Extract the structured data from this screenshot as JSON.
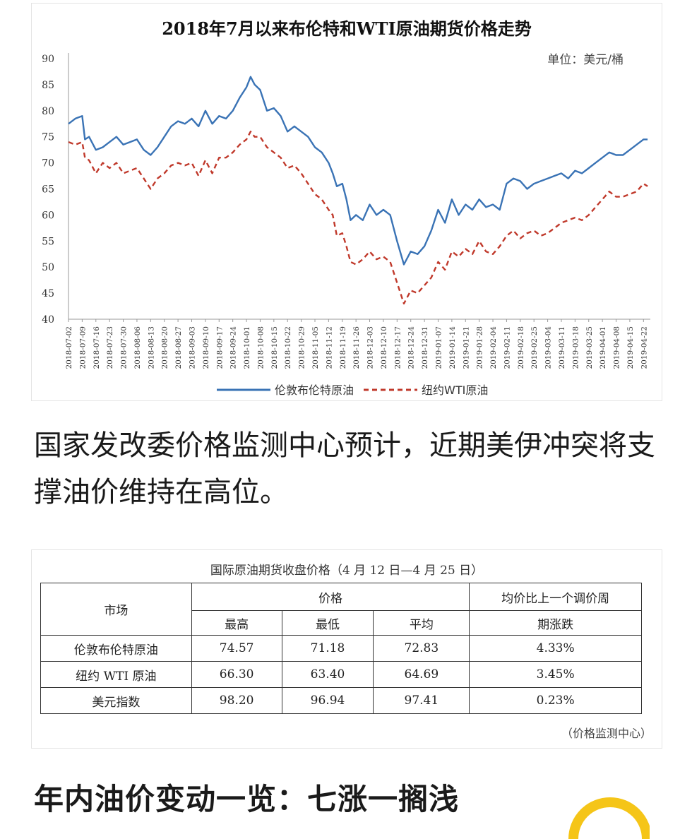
{
  "chart_data": {
    "type": "line",
    "title": "2018年7月以来布伦特和WTI原油期货价格走势",
    "unit_label": "单位：美元/桶",
    "ylim": [
      40,
      90
    ],
    "yticks": [
      40,
      45,
      50,
      55,
      60,
      65,
      70,
      75,
      80,
      85,
      90
    ],
    "x_ticks": [
      "2018-07-02",
      "2018-07-09",
      "2018-07-16",
      "2018-07-23",
      "2018-07-30",
      "2018-08-06",
      "2018-08-13",
      "2018-08-20",
      "2018-08-27",
      "2018-09-03",
      "2018-09-10",
      "2018-09-17",
      "2018-09-24",
      "2018-10-01",
      "2018-10-08",
      "2018-10-15",
      "2018-10-22",
      "2018-10-29",
      "2018-11-05",
      "2018-11-12",
      "2018-11-19",
      "2018-11-26",
      "2018-12-03",
      "2018-12-10",
      "2018-12-17",
      "2018-12-24",
      "2018-12-31",
      "2019-01-07",
      "2019-01-14",
      "2019-01-21",
      "2019-01-28",
      "2019-02-04",
      "2019-02-11",
      "2019-02-18",
      "2019-02-25",
      "2019-03-04",
      "2019-03-11",
      "2019-03-18",
      "2019-03-25",
      "2019-04-01",
      "2019-04-08",
      "2019-04-15",
      "2019-04-22"
    ],
    "x_index_range": [
      0,
      42.5
    ],
    "series": [
      {
        "name": "伦敦布伦特原油",
        "color": "#3a73b5",
        "dash": "solid",
        "x": [
          0,
          0.5,
          1,
          1.2,
          1.5,
          2,
          2.5,
          3,
          3.5,
          4,
          4.5,
          5,
          5.5,
          6,
          6.5,
          7,
          7.5,
          8,
          8.5,
          9,
          9.5,
          10,
          10.5,
          11,
          11.5,
          12,
          12.5,
          13,
          13.3,
          13.6,
          14,
          14.5,
          15,
          15.5,
          16,
          16.5,
          17,
          17.5,
          18,
          18.5,
          19,
          19.3,
          19.6,
          20,
          20.3,
          20.6,
          21,
          21.5,
          22,
          22.5,
          23,
          23.5,
          24,
          24.5,
          25,
          25.5,
          26,
          26.5,
          27,
          27.5,
          28,
          28.5,
          29,
          29.5,
          30,
          30.5,
          31,
          31.5,
          32,
          32.5,
          33,
          33.5,
          34,
          34.5,
          35,
          35.5,
          36,
          36.5,
          37,
          37.5,
          38,
          38.5,
          39,
          39.5,
          40,
          40.5,
          41,
          41.5,
          42,
          42.3
        ],
        "y": [
          77.5,
          78.5,
          79,
          74.5,
          75,
          72.5,
          73,
          74,
          75,
          73.5,
          74,
          74.5,
          72.5,
          71.5,
          73,
          75,
          77,
          78,
          77.5,
          78.5,
          77,
          80,
          77.5,
          79,
          78.5,
          80,
          82.5,
          84.5,
          86.5,
          85,
          84,
          80,
          80.5,
          79,
          76,
          77,
          76,
          75,
          73,
          72,
          70,
          68,
          65.5,
          66,
          63,
          59,
          60,
          59,
          62,
          60,
          61,
          60,
          55,
          50.5,
          53,
          52.5,
          54,
          57,
          61,
          58.5,
          63,
          60,
          62,
          61,
          63,
          61.5,
          62,
          61,
          66,
          67,
          66.5,
          65,
          66,
          66.5,
          67,
          67.5,
          68,
          67,
          68.5,
          68,
          69,
          70,
          71,
          72,
          71.5,
          71.5,
          72.5,
          73.5,
          74.5,
          74.5
        ]
      },
      {
        "name": "纽约WTI原油",
        "color": "#c0392b",
        "dash": "dashed",
        "x": [
          0,
          0.5,
          1,
          1.2,
          1.5,
          2,
          2.5,
          3,
          3.5,
          4,
          4.5,
          5,
          5.5,
          6,
          6.5,
          7,
          7.5,
          8,
          8.5,
          9,
          9.5,
          10,
          10.5,
          11,
          11.5,
          12,
          12.5,
          13,
          13.3,
          13.6,
          14,
          14.5,
          15,
          15.5,
          16,
          16.5,
          17,
          17.5,
          18,
          18.5,
          19,
          19.3,
          19.6,
          20,
          20.3,
          20.6,
          21,
          21.5,
          22,
          22.5,
          23,
          23.5,
          24,
          24.5,
          25,
          25.5,
          26,
          26.5,
          27,
          27.5,
          28,
          28.5,
          29,
          29.5,
          30,
          30.5,
          31,
          31.5,
          32,
          32.5,
          33,
          33.5,
          34,
          34.5,
          35,
          35.5,
          36,
          36.5,
          37,
          37.5,
          38,
          38.5,
          39,
          39.5,
          40,
          40.5,
          41,
          41.5,
          42,
          42.3
        ],
        "y": [
          74,
          73.5,
          74,
          71,
          70.5,
          68,
          70,
          69,
          70,
          68,
          68.5,
          69,
          67,
          65,
          67,
          68,
          69.5,
          70,
          69.5,
          70,
          67.5,
          70.5,
          68,
          71,
          71,
          72,
          73.5,
          74.5,
          76,
          75,
          75,
          73,
          72,
          71,
          69,
          69.5,
          68,
          66,
          64,
          63,
          61,
          60,
          56,
          56.5,
          54,
          51,
          50.5,
          51.5,
          53,
          51.5,
          52,
          51,
          47,
          43,
          45.5,
          45,
          46.5,
          48,
          51,
          49.5,
          53,
          52,
          53.5,
          52.5,
          55,
          53,
          52.5,
          54,
          56,
          57,
          55.5,
          56.5,
          57,
          56,
          56.5,
          57.5,
          58.5,
          59,
          59.5,
          59,
          60,
          61.5,
          63,
          64.5,
          63.5,
          63.5,
          64,
          64.5,
          66,
          65.5
        ]
      }
    ],
    "legend_position": "bottom-center"
  },
  "paragraph": "国家发改委价格监测中心预计，近期美伊冲突将支撑油价维持在高位。",
  "price_table": {
    "title": "国际原油期货收盘价格（4 月 12 日—4 月 25 日）",
    "header": {
      "market": "市场",
      "price": "价格",
      "change_line1": "均价比上一个调价周",
      "change_line2": "期涨跌",
      "high": "最高",
      "low": "最低",
      "avg": "平均"
    },
    "rows": [
      {
        "market": "伦敦布伦特原油",
        "high": "74.57",
        "low": "71.18",
        "avg": "72.83",
        "change": "4.33%"
      },
      {
        "market": "纽约 WTI 原油",
        "high": "66.30",
        "low": "63.40",
        "avg": "64.69",
        "change": "3.45%"
      },
      {
        "market": "美元指数",
        "high": "98.20",
        "low": "96.94",
        "avg": "97.41",
        "change": "0.23%"
      }
    ],
    "source": "（价格监测中心）"
  },
  "section_heading": "年内油价变动一览：七涨一搁浅",
  "colors": {
    "accent_yellow": "#f5c518"
  }
}
